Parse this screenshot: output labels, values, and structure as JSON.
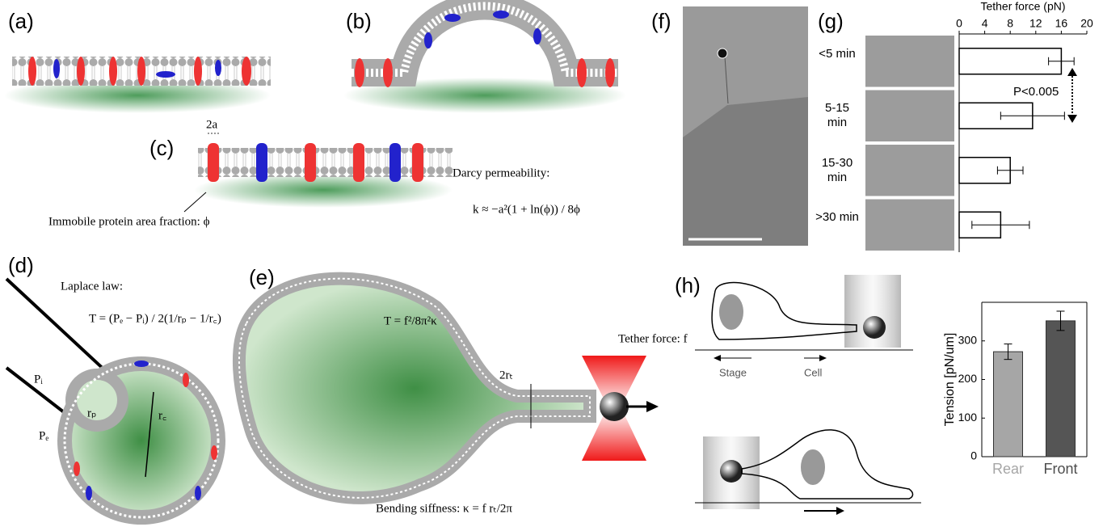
{
  "panel_labels": [
    "(a)",
    "(b)",
    "(c)",
    "(d)",
    "(e)",
    "(f)",
    "(g)",
    "(h)"
  ],
  "panel_c": {
    "width_label": "2a",
    "immobile": "Immobile protein area fraction: ϕ",
    "darcy": "Darcy permeability:",
    "formula": "k ≈ −a²(1 + ln(ϕ)) / 8ϕ"
  },
  "panel_d": {
    "laplace": "Laplace law:",
    "formula": "T = (Pₑ − Pᵢ) / 2(1/rₚ − 1/r꜀)",
    "p_i": "Pᵢ",
    "p_e": "Pₑ",
    "r_p": "rₚ",
    "r_c": "r꜀"
  },
  "panel_e": {
    "tension": "T = f²/8π²κ",
    "radius": "2rₜ",
    "tether": "Tether force: f",
    "bending": "Bending siffness: κ = f rₜ/2π"
  },
  "panel_h": {
    "stage": "Stage",
    "cell": "Cell"
  },
  "chart_data": [
    {
      "type": "hbar",
      "title": "Tether force (pN)",
      "categories": [
        "<5 min",
        "5-15 min",
        "15-30 min",
        ">30 min"
      ],
      "values": [
        16,
        11.5,
        8,
        6.5
      ],
      "errors": [
        2,
        5,
        2,
        4.5
      ],
      "color": "#ffffff",
      "xlim": [
        0,
        20
      ],
      "xticks": [
        0,
        4,
        8,
        12,
        16,
        20
      ],
      "annotation": "P<0.005"
    },
    {
      "type": "bar",
      "ylabel": "Tension [pN/um]",
      "categories": [
        "Rear",
        "Front"
      ],
      "category_colors": [
        "#a6a6a6",
        "#4d4d4d"
      ],
      "values": [
        272,
        352
      ],
      "errors": [
        20,
        25
      ],
      "colors": [
        "#a6a6a6",
        "#555555"
      ],
      "ylim": [
        0,
        400
      ],
      "yticks": [
        0,
        100,
        200,
        300
      ]
    }
  ]
}
